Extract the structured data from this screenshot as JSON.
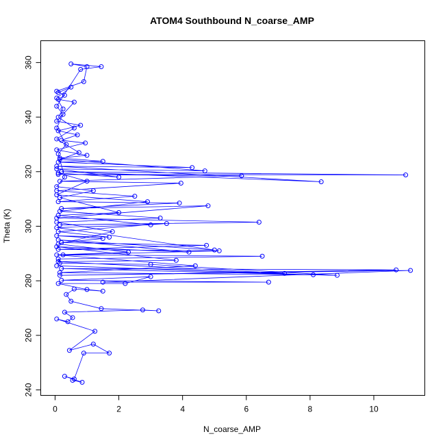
{
  "chart_data": {
    "type": "line",
    "title": "ATOM4 Southbound N_coarse_AMP",
    "xlabel": "N_coarse_AMP",
    "ylabel": "Theta (K)",
    "xlim": [
      -0.45,
      11.6
    ],
    "ylim": [
      238,
      368
    ],
    "x_ticks": [
      0,
      2,
      4,
      6,
      8,
      10
    ],
    "y_ticks": [
      240,
      260,
      280,
      300,
      320,
      340,
      360
    ],
    "series_color": "#0000ff",
    "marker": "open-circle",
    "grid": false,
    "series": [
      {
        "points": [
          [
            0.55,
            243.5
          ],
          [
            0.85,
            242.8
          ],
          [
            0.3,
            245.0
          ],
          [
            0.6,
            244.0
          ],
          [
            0.9,
            253.5
          ],
          [
            1.7,
            253.5
          ],
          [
            1.2,
            256.8
          ],
          [
            0.45,
            254.5
          ],
          [
            1.25,
            261.5
          ],
          [
            0.05,
            266.0
          ],
          [
            0.4,
            265.0
          ],
          [
            0.55,
            266.5
          ],
          [
            0.3,
            268.5
          ],
          [
            2.75,
            269.3
          ],
          [
            3.25,
            269.0
          ],
          [
            1.45,
            269.8
          ],
          [
            0.5,
            272.5
          ],
          [
            0.35,
            275.0
          ],
          [
            0.6,
            277.0
          ],
          [
            1.5,
            276.2
          ],
          [
            1.0,
            276.8
          ],
          [
            0.1,
            279.0
          ],
          [
            2.2,
            279.0
          ],
          [
            3.0,
            281.5
          ],
          [
            0.2,
            280.2
          ],
          [
            6.7,
            279.5
          ],
          [
            1.5,
            279.5
          ],
          [
            11.15,
            283.8
          ],
          [
            0.15,
            282.0
          ],
          [
            10.7,
            284.0
          ],
          [
            0.2,
            284.5
          ],
          [
            8.85,
            282.0
          ],
          [
            3.0,
            286.0
          ],
          [
            0.15,
            286.5
          ],
          [
            0.1,
            288.0
          ],
          [
            6.5,
            289.0
          ],
          [
            0.25,
            289.5
          ],
          [
            5.15,
            291.0
          ],
          [
            0.1,
            291.5
          ],
          [
            4.75,
            293.0
          ],
          [
            0.2,
            294.0
          ],
          [
            1.5,
            295.5
          ],
          [
            0.05,
            296.5
          ],
          [
            1.7,
            296.0
          ],
          [
            0.1,
            298.0
          ],
          [
            3.5,
            301.0
          ],
          [
            0.15,
            300.5
          ],
          [
            6.4,
            301.5
          ],
          [
            0.05,
            303.0
          ],
          [
            4.8,
            307.5
          ],
          [
            0.2,
            306.5
          ],
          [
            3.9,
            308.5
          ],
          [
            0.1,
            309.0
          ],
          [
            2.5,
            311.0
          ],
          [
            0.05,
            313.0
          ],
          [
            3.95,
            315.8
          ],
          [
            0.15,
            316.5
          ],
          [
            5.85,
            318.5
          ],
          [
            0.1,
            319.0
          ],
          [
            11.0,
            318.8
          ],
          [
            0.2,
            320.0
          ],
          [
            8.35,
            316.3
          ],
          [
            0.05,
            322.0
          ],
          [
            4.3,
            321.5
          ],
          [
            0.1,
            323.5
          ],
          [
            1.5,
            323.8
          ],
          [
            0.15,
            325.0
          ],
          [
            1.0,
            326.0
          ],
          [
            0.05,
            328.0
          ],
          [
            0.95,
            330.5
          ],
          [
            0.2,
            331.5
          ],
          [
            0.7,
            333.5
          ],
          [
            0.1,
            335.0
          ],
          [
            0.8,
            337.0
          ],
          [
            0.05,
            338.5
          ],
          [
            0.6,
            345.5
          ],
          [
            0.1,
            346.5
          ],
          [
            0.3,
            348.0
          ],
          [
            0.05,
            349.5
          ],
          [
            0.9,
            353.0
          ],
          [
            1.0,
            358.5
          ],
          [
            0.5,
            359.5
          ],
          [
            1.45,
            358.5
          ],
          [
            0.8,
            357.5
          ],
          [
            0.05,
            344.0
          ],
          [
            0.25,
            341.0
          ],
          [
            0.05,
            336.0
          ],
          [
            0.35,
            330.0
          ],
          [
            0.1,
            326.5
          ],
          [
            0.3,
            318.0
          ],
          [
            0.05,
            314.5
          ],
          [
            1.2,
            313.0
          ],
          [
            0.15,
            310.5
          ],
          [
            2.0,
            305.0
          ],
          [
            0.1,
            304.0
          ],
          [
            3.0,
            300.5
          ],
          [
            0.05,
            299.5
          ],
          [
            5.0,
            291.3
          ],
          [
            0.1,
            295.0
          ],
          [
            4.2,
            290.5
          ],
          [
            0.05,
            292.5
          ],
          [
            3.8,
            287.5
          ],
          [
            0.1,
            287.0
          ],
          [
            7.2,
            282.7
          ],
          [
            0.05,
            285.5
          ],
          [
            8.1,
            282.2
          ],
          [
            0.15,
            283.0
          ],
          [
            4.4,
            285.5
          ],
          [
            0.05,
            289.5
          ],
          [
            2.3,
            290.5
          ],
          [
            0.1,
            293.5
          ],
          [
            1.8,
            298.0
          ],
          [
            0.05,
            301.5
          ],
          [
            3.3,
            303.0
          ],
          [
            0.15,
            305.5
          ],
          [
            2.9,
            309.0
          ],
          [
            0.05,
            311.5
          ],
          [
            1.0,
            316.5
          ],
          [
            0.1,
            319.5
          ],
          [
            2.0,
            318.0
          ],
          [
            0.05,
            321.0
          ],
          [
            4.7,
            320.3
          ],
          [
            0.15,
            324.5
          ],
          [
            0.75,
            327.0
          ],
          [
            0.05,
            332.0
          ],
          [
            0.6,
            336.0
          ],
          [
            0.1,
            340.0
          ],
          [
            0.25,
            343.0
          ],
          [
            0.05,
            347.0
          ],
          [
            0.5,
            351.0
          ],
          [
            0.1,
            349.0
          ]
        ]
      }
    ]
  }
}
